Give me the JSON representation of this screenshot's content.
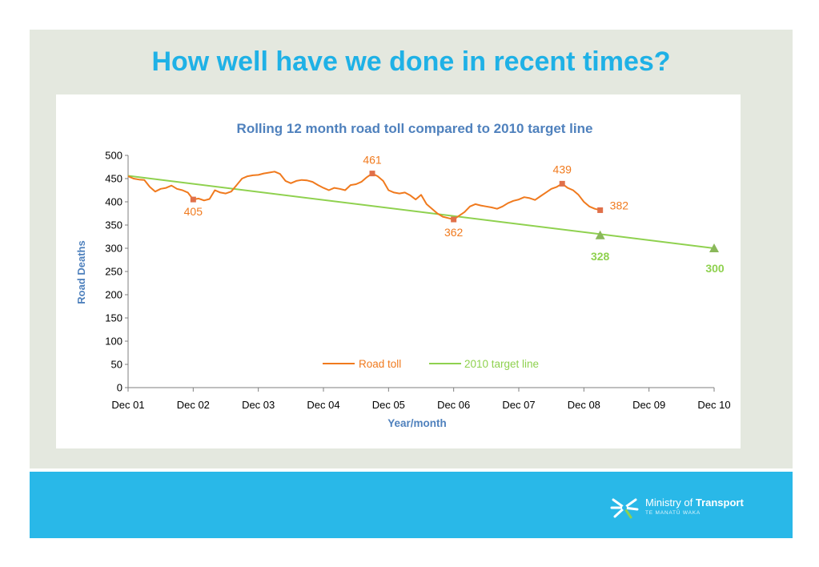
{
  "slide": {
    "title": "How well have we done in recent times?",
    "colors": {
      "title": "#1fb1e6",
      "background": "#e4e8df",
      "footer": "#29b8e8"
    }
  },
  "footer": {
    "logo_icon": "fern-star-icon",
    "org_name_light": "Ministry of ",
    "org_name_bold": "Transport",
    "org_subtitle": "TE MANATŪ WAKA"
  },
  "chart_data": {
    "type": "line",
    "title": "Rolling 12 month road toll compared to 2010 target line",
    "xlabel": "Year/month",
    "ylabel": "Road Deaths",
    "ylim": [
      0,
      500
    ],
    "yticks": [
      0,
      50,
      100,
      150,
      200,
      250,
      300,
      350,
      400,
      450,
      500
    ],
    "xticks": [
      "Dec 01",
      "Dec 02",
      "Dec 03",
      "Dec 04",
      "Dec 05",
      "Dec 06",
      "Dec 07",
      "Dec 08",
      "Dec 09",
      "Dec 10"
    ],
    "grid": false,
    "legend": "bottom-center",
    "colors": {
      "road_toll": "#f07a1e",
      "road_toll_marker": "#e0704a",
      "target": "#8fd14f",
      "target_marker": "#8ab85a",
      "axis_text": "#4f81bd"
    },
    "series": [
      {
        "name": "Road toll",
        "x": [
          0,
          1,
          2,
          3,
          4,
          5,
          6,
          7,
          8,
          9,
          10,
          11,
          12,
          13,
          14,
          15,
          16,
          17,
          18,
          19,
          20,
          21,
          22,
          23,
          24,
          25,
          26,
          27,
          28,
          29,
          30,
          31,
          32,
          33,
          34,
          35,
          36,
          37,
          38,
          39,
          40,
          41,
          42,
          43,
          44,
          45,
          46,
          47,
          48,
          49,
          50,
          51,
          52,
          53,
          54,
          55,
          56,
          57,
          58,
          59,
          60,
          61,
          62,
          63,
          64,
          65,
          66,
          67,
          68,
          69,
          70,
          71,
          72,
          73,
          74,
          75,
          76,
          77,
          78,
          79,
          80,
          81,
          82,
          83,
          84,
          85,
          86,
          87
        ],
        "values": [
          455,
          450,
          448,
          447,
          432,
          422,
          428,
          430,
          435,
          428,
          425,
          420,
          405,
          407,
          403,
          406,
          425,
          420,
          418,
          422,
          436,
          450,
          455,
          457,
          458,
          461,
          463,
          465,
          460,
          445,
          440,
          445,
          447,
          446,
          443,
          436,
          430,
          425,
          430,
          428,
          425,
          436,
          438,
          443,
          453,
          461,
          455,
          445,
          425,
          420,
          418,
          420,
          414,
          405,
          415,
          395,
          385,
          375,
          368,
          365,
          362,
          370,
          378,
          390,
          395,
          392,
          390,
          388,
          385,
          390,
          397,
          402,
          405,
          410,
          408,
          404,
          412,
          420,
          428,
          432,
          439,
          430,
          425,
          415,
          400,
          390,
          385,
          382
        ],
        "annotations": [
          {
            "x": 12,
            "value": 405,
            "label": "405"
          },
          {
            "x": 45,
            "value": 461,
            "label": "461"
          },
          {
            "x": 60,
            "value": 362,
            "label": "362"
          },
          {
            "x": 80,
            "value": 439,
            "label": "439"
          },
          {
            "x": 87,
            "value": 382,
            "label": "382"
          }
        ]
      },
      {
        "name": "2010 target line",
        "x": [
          0,
          108
        ],
        "values": [
          456,
          300
        ],
        "annotations": [
          {
            "x": 87,
            "value": 328,
            "label": "328"
          },
          {
            "x": 108,
            "value": 300,
            "label": "300"
          }
        ]
      }
    ]
  }
}
